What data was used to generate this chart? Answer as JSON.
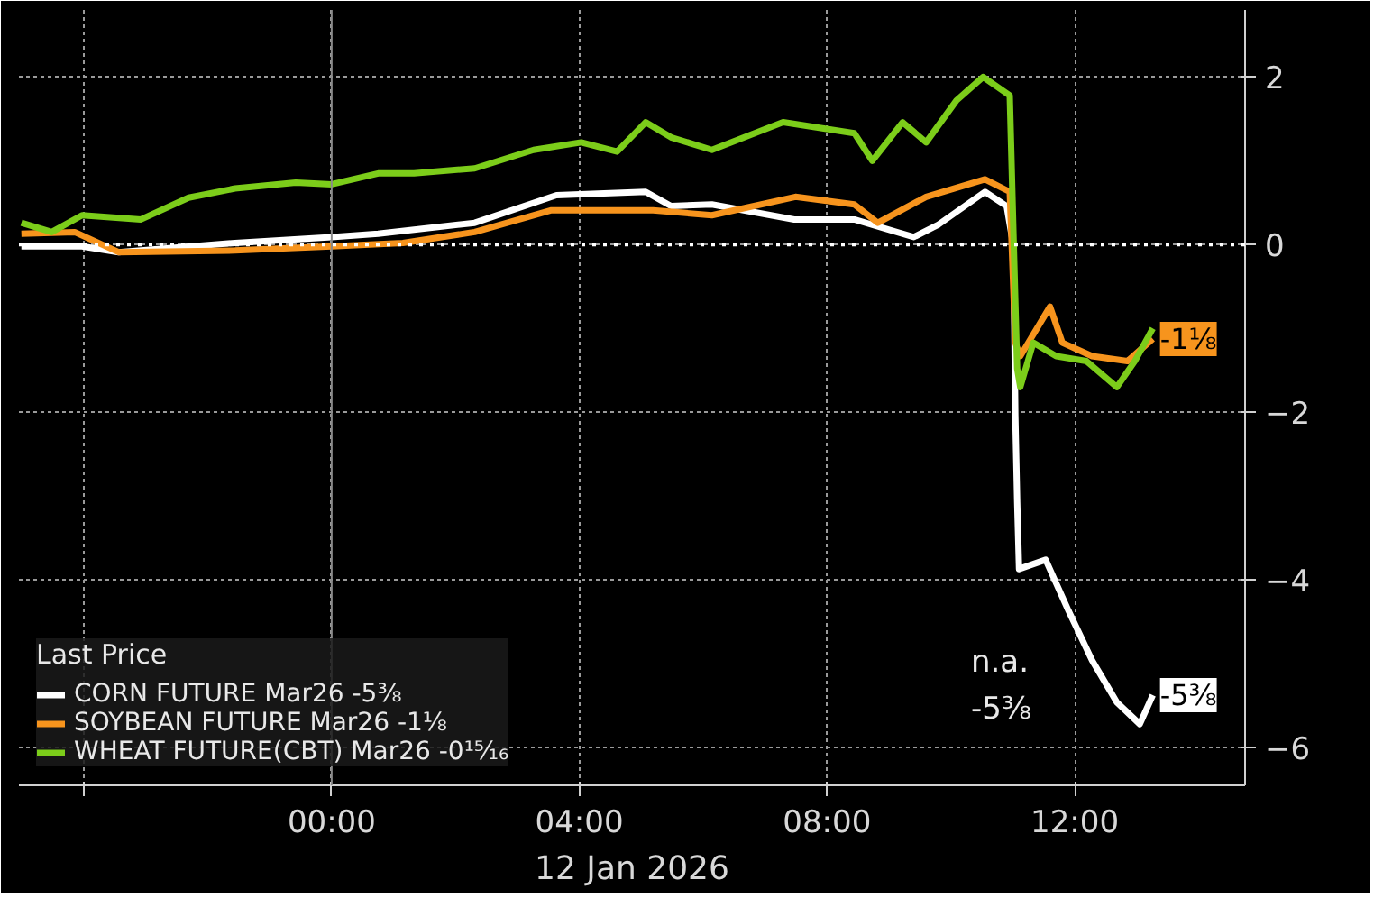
{
  "chart_data": {
    "type": "line",
    "xlabel": "12 Jan 2026",
    "legend_title": "Last Price",
    "legend": "bottom left",
    "grid": true,
    "line_style": "solid",
    "marker": "none",
    "xlim": [
      -5.05,
      14.75
    ],
    "ylim": [
      -6.45,
      2.8
    ],
    "xticks": [
      {
        "value": -4,
        "label": null
      },
      {
        "value": 0,
        "label": "00:00"
      },
      {
        "value": 4,
        "label": "04:00"
      },
      {
        "value": 8,
        "label": "08:00"
      },
      {
        "value": 12,
        "label": "12:00"
      }
    ],
    "yticks": [
      -6,
      -4,
      -2,
      0,
      2
    ],
    "ref_lines": [
      {
        "axis": "y",
        "value": 0,
        "label": null,
        "color": "#ffffff",
        "line_style": "dotted"
      },
      {
        "axis": "x",
        "value": 0,
        "label": null,
        "color": "#8a8a8a",
        "line_style": "solid"
      }
    ],
    "annotations": [
      "n.a.",
      "-5⅜",
      {
        "text": "-1⅛",
        "x": 13.26,
        "y": -1.125
      },
      {
        "text": "-5⅜",
        "x": 13.26,
        "y": -5.375
      }
    ],
    "series": [
      {
        "name": "CORN FUTURE Mar26 -5⅜",
        "color": "#ffffff",
        "x": [
          -5.01,
          -4.03,
          -3.44,
          -1.56,
          0,
          0.75,
          2.31,
          3.63,
          5.07,
          5.48,
          6.14,
          7.47,
          8.44,
          9.4,
          9.8,
          10.55,
          10.9,
          11.01,
          11.04,
          11.07,
          11.1,
          11.53,
          11.9,
          12.28,
          12.68,
          13.05,
          13.26
        ],
        "values": [
          -0.02,
          -0.02,
          -0.09,
          0.02,
          0.09,
          0.13,
          0.26,
          0.59,
          0.63,
          0.46,
          0.48,
          0.3,
          0.3,
          0.09,
          0.24,
          0.63,
          0.46,
          -0.02,
          -2.04,
          -3.07,
          -3.87,
          -3.76,
          -4.37,
          -4.96,
          -5.46,
          -5.72,
          -5.375
        ]
      },
      {
        "name": "SOYBEAN FUTURE Mar26 -1⅛",
        "color": "#f7941d",
        "x": [
          -5.01,
          -4.15,
          -3.44,
          -1.56,
          0,
          1.15,
          2.31,
          3.55,
          5.19,
          6.14,
          7.49,
          8.44,
          8.82,
          9.6,
          10.55,
          10.95,
          11.04,
          11.12,
          11.6,
          11.8,
          12.28,
          12.85,
          13.26
        ],
        "values": [
          0.13,
          0.15,
          -0.09,
          -0.07,
          -0.02,
          0.02,
          0.15,
          0.41,
          0.41,
          0.35,
          0.57,
          0.48,
          0.26,
          0.57,
          0.78,
          0.63,
          -1.17,
          -1.33,
          -0.74,
          -1.17,
          -1.33,
          -1.39,
          -1.125
        ]
      },
      {
        "name": "WHEAT FUTURE(CBT) Mar26 -0¹⁵⁄₁₆",
        "color": "#7ccd1a",
        "x": [
          -5.01,
          -4.52,
          -4.03,
          -3.08,
          -2.31,
          -1.56,
          -0.58,
          0,
          0.75,
          1.33,
          2.31,
          3.26,
          4.03,
          4.61,
          5.07,
          5.48,
          6.14,
          7.29,
          8.44,
          8.73,
          9.22,
          9.6,
          10.09,
          10.52,
          10.95,
          11.01,
          11.07,
          11.12,
          11.33,
          11.7,
          12.19,
          12.68,
          12.97,
          13.26
        ],
        "values": [
          0.26,
          0.15,
          0.35,
          0.3,
          0.56,
          0.67,
          0.74,
          0.72,
          0.85,
          0.85,
          0.91,
          1.13,
          1.22,
          1.11,
          1.46,
          1.28,
          1.13,
          1.46,
          1.33,
          1.0,
          1.46,
          1.22,
          1.72,
          2.0,
          1.78,
          0.13,
          -1.48,
          -1.7,
          -1.17,
          -1.33,
          -1.39,
          -1.7,
          -1.39,
          -1.0
        ]
      }
    ]
  }
}
